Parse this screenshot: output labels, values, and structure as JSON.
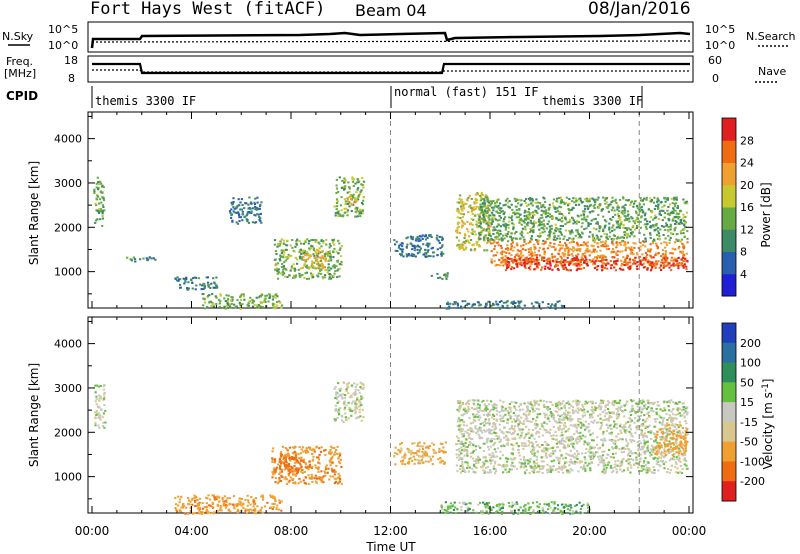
{
  "header": {
    "station": "Fort Hays West (fitACF)",
    "beam": "Beam 04",
    "date": "08/Jan/2016"
  },
  "strips": {
    "nsky_label": "N.Sky",
    "nsearch_label": "N.Search",
    "nsky_ticks": [
      "10^5",
      "10^0"
    ],
    "nsearch_ticks": [
      "10^5",
      "10^0"
    ],
    "freq_label_line1": "Freq.",
    "freq_label_line2": "[MHz]",
    "freq_ticks": [
      "18",
      "8"
    ],
    "nave_label": "Nave",
    "nave_ticks": [
      "60",
      "0"
    ],
    "cpid_label": "CPID",
    "cpid_segments": [
      {
        "label": "themis 3300 IF",
        "start_hour": 0,
        "end_hour": 12
      },
      {
        "label": "normal (fast) 151 IF",
        "start_hour": 12,
        "end_hour": 22
      },
      {
        "label": "themis 3300 IF",
        "start_hour": 22,
        "end_hour": 24
      }
    ]
  },
  "chart_data": [
    {
      "type": "heatmap",
      "title": "",
      "xlabel": "Time UT",
      "ylabel": "Slant Range [km]",
      "xlim": [
        0,
        24
      ],
      "ylim": [
        180,
        4600
      ],
      "x_ticks": [
        "00:00",
        "04:00",
        "08:00",
        "12:00",
        "16:00",
        "20:00",
        "00:00"
      ],
      "y_ticks": [
        1000,
        2000,
        3000,
        4000
      ],
      "colorbar_label": "Power [dB]",
      "colorbar_ticks": [
        4,
        8,
        12,
        16,
        20,
        24,
        28
      ],
      "colorbar_range": [
        0,
        32
      ],
      "colorbar_colors": [
        "#1f1fd6",
        "#2a5fb0",
        "#3d8a66",
        "#66aa44",
        "#c8c830",
        "#f0a030",
        "#ef6c12",
        "#e02020"
      ],
      "dashed_vertical_hours": [
        12,
        22
      ],
      "regions": [
        {
          "hour_range": [
            0.05,
            0.45
          ],
          "range_km": [
            2050,
            3150
          ],
          "value": 13
        },
        {
          "hour_range": [
            1.2,
            2.6
          ],
          "range_km": [
            1250,
            1350
          ],
          "value": 10
        },
        {
          "hour_range": [
            3.3,
            5.0
          ],
          "range_km": [
            600,
            900
          ],
          "value": 9
        },
        {
          "hour_range": [
            4.4,
            7.6
          ],
          "range_km": [
            180,
            520
          ],
          "value": 14
        },
        {
          "hour_range": [
            5.5,
            6.8
          ],
          "range_km": [
            2100,
            2700
          ],
          "value": 8
        },
        {
          "hour_range": [
            7.3,
            10.0
          ],
          "range_km": [
            850,
            1750
          ],
          "value": 14
        },
        {
          "hour_range": [
            8.4,
            9.5
          ],
          "range_km": [
            1100,
            1500
          ],
          "value": 20
        },
        {
          "hour_range": [
            9.7,
            10.9
          ],
          "range_km": [
            2250,
            3150
          ],
          "value": 14
        },
        {
          "hour_range": [
            10.2,
            10.6
          ],
          "range_km": [
            2550,
            2800
          ],
          "value": 21
        },
        {
          "hour_range": [
            12.1,
            14.1
          ],
          "range_km": [
            1350,
            1850
          ],
          "value": 8
        },
        {
          "hour_range": [
            13.6,
            14.4
          ],
          "range_km": [
            850,
            1000
          ],
          "value": 10
        },
        {
          "hour_range": [
            14.6,
            16.0
          ],
          "range_km": [
            1500,
            2800
          ],
          "value": 18
        },
        {
          "hour_range": [
            15.5,
            23.9
          ],
          "range_km": [
            1700,
            2700
          ],
          "value": 13
        },
        {
          "hour_range": [
            16.0,
            23.9
          ],
          "range_km": [
            1150,
            1700
          ],
          "value": 24
        },
        {
          "hour_range": [
            16.5,
            23.9
          ],
          "range_km": [
            1050,
            1350
          ],
          "value": 29
        },
        {
          "hour_range": [
            14.2,
            19.0
          ],
          "range_km": [
            180,
            360
          ],
          "value": 8
        }
      ]
    },
    {
      "type": "heatmap",
      "title": "",
      "xlabel": "Time UT",
      "ylabel": "Slant Range [km]",
      "xlim": [
        0,
        24
      ],
      "ylim": [
        180,
        4600
      ],
      "x_ticks": [
        "00:00",
        "04:00",
        "08:00",
        "12:00",
        "16:00",
        "20:00",
        "00:00"
      ],
      "y_ticks": [
        1000,
        2000,
        3000,
        4000
      ],
      "colorbar_label": "Velocity [m s^-1]",
      "colorbar_ticks": [
        200,
        100,
        50,
        15,
        -15,
        -50,
        -100,
        -200
      ],
      "colorbar_colors": [
        "#1f3fbf",
        "#2a6fa0",
        "#2f8f5a",
        "#66c040",
        "#c8c8c0",
        "#d8c890",
        "#f0a030",
        "#ef6c12",
        "#e02020"
      ],
      "dashed_vertical_hours": [
        12,
        22
      ],
      "regions": [
        {
          "hour_range": [
            0.05,
            0.5
          ],
          "range_km": [
            2100,
            3100
          ],
          "value": 0
        },
        {
          "hour_range": [
            3.3,
            7.6
          ],
          "range_km": [
            180,
            600
          ],
          "value": -80
        },
        {
          "hour_range": [
            7.2,
            10.0
          ],
          "range_km": [
            850,
            1700
          ],
          "value": -90
        },
        {
          "hour_range": [
            7.5,
            8.3
          ],
          "range_km": [
            1100,
            1500
          ],
          "value": -150
        },
        {
          "hour_range": [
            9.7,
            10.9
          ],
          "range_km": [
            2250,
            3150
          ],
          "value": 0
        },
        {
          "hour_range": [
            12.1,
            14.2
          ],
          "range_km": [
            1300,
            1800
          ],
          "value": -60
        },
        {
          "hour_range": [
            14.6,
            23.9
          ],
          "range_km": [
            1100,
            2750
          ],
          "value": 0
        },
        {
          "hour_range": [
            22.6,
            23.9
          ],
          "range_km": [
            1500,
            2200
          ],
          "value": -70
        },
        {
          "hour_range": [
            14.0,
            20.0
          ],
          "range_km": [
            180,
            450
          ],
          "value": 30
        }
      ]
    }
  ]
}
